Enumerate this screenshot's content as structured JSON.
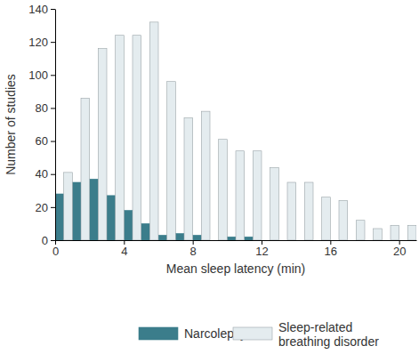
{
  "chart_data": {
    "type": "histogram",
    "x_label": "Mean sleep latency (min)",
    "y_label": "Number of studies",
    "bins": [
      0,
      1,
      2,
      3,
      4,
      5,
      6,
      7,
      8,
      9,
      10,
      11,
      12,
      13,
      14,
      15,
      16,
      17,
      18,
      19,
      20,
      21
    ],
    "series": [
      {
        "name": "Narcolepsy",
        "color": "#3b7d8b",
        "values": [
          28,
          35,
          37,
          27,
          18,
          10,
          3,
          4,
          3,
          0,
          2,
          2,
          0,
          0,
          0,
          0,
          0,
          0,
          0,
          0,
          0
        ]
      },
      {
        "name": "Sleep-related breathing disorder",
        "color": "#e4ecef",
        "values": [
          41,
          86,
          116,
          124,
          124,
          132,
          96,
          74,
          78,
          61,
          54,
          54,
          44,
          35,
          35,
          26,
          24,
          12,
          7,
          9,
          9
        ]
      }
    ],
    "xlim": [
      0,
      21
    ],
    "xticks": [
      0,
      4,
      8,
      12,
      16,
      20
    ],
    "ylim": [
      0,
      140
    ],
    "yticks": [
      0,
      20,
      40,
      60,
      80,
      100,
      120,
      140
    ],
    "legend": "bottom"
  }
}
